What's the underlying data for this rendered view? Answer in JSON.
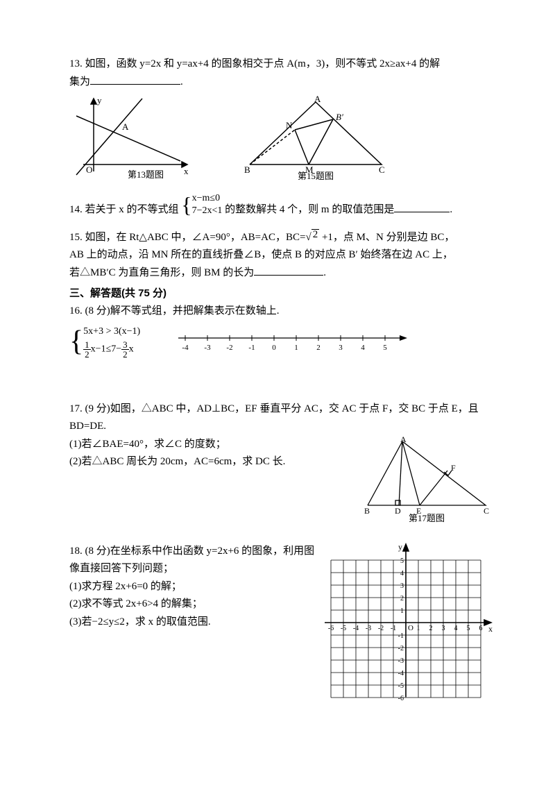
{
  "q13": {
    "text_a": "13. 如图，函数 y=2x 和 y=ax+4 的图象相交于点 A(m，3)，则不等式 2x≥ax+4 的解",
    "text_b": "集为",
    "blank_w": 130,
    "fig_caption": "第13题图",
    "fig": {
      "y_label": "y",
      "x_label": "x",
      "O_label": "O",
      "A_label": "A",
      "axis_color": "#000000",
      "line_color": "#000000"
    }
  },
  "q15fig": {
    "A": "A",
    "B": "B",
    "C": "C",
    "M": "M",
    "N": "N",
    "Bp": "B′",
    "caption": "第15题图",
    "color": "#000000"
  },
  "q14": {
    "prefix": "14. 若关于 x 的不等式组",
    "line1": "x−m≤0",
    "line2": "7−2x<1",
    "suffix": " 的整数解共 4 个，则 m 的取值范围是",
    "blank_w": 80
  },
  "q15": {
    "l1a": "15. 如图，在 Rt△ABC 中，∠A=90°，AB=AC，BC=",
    "sqrt": "2",
    "l1b": " +1，点 M、N 分别是边 BC，",
    "l2": "AB 上的动点，沿 MN 所在的直线折叠∠B，使点 B 的对应点 B′ 始终落在边 AC 上，",
    "l3": "若△MB′C 为直角三角形，则 BM 的长为",
    "blank_w": 100
  },
  "sec3": "三、解答题(共 75 分)",
  "q16": {
    "head": "16. (8 分)解不等式组，并把解集表示在数轴上.",
    "line1": "5x+3 > 3(x−1)",
    "line2_pre": "",
    "line2_mid": "x−1≤7−",
    "line2_post": "x",
    "numline": {
      "ticks": [
        -4,
        -3,
        -2,
        -1,
        0,
        1,
        2,
        3,
        4,
        5
      ],
      "color": "#000000"
    }
  },
  "q17": {
    "l1": "17. (9 分)如图，△ABC 中，AD⊥BC，EF 垂直平分 AC，交 AC 于点 F，交 BC 于点 E，且 BD=DE.",
    "l2": "(1)若∠BAE=40°，求∠C 的度数；",
    "l3": "(2)若△ABC 周长为 20cm，AC=6cm，求 DC 长.",
    "fig": {
      "A": "A",
      "B": "B",
      "C": "C",
      "D": "D",
      "E": "E",
      "F": "F",
      "caption": "第17题图",
      "color": "#000000"
    }
  },
  "q18": {
    "l1": "18. (8 分)在坐标系中作出函数 y=2x+6 的图象，利用图像直接回答下列问题；",
    "l2": "(1)求方程 2x+6=0 的解；",
    "l3": "(2)求不等式 2x+6>4 的解集；",
    "l4": "(3)若−2≤y≤2，求 x 的取值范围.",
    "grid": {
      "xlabels": [
        "-6",
        "-5",
        "-4",
        "-3",
        "-2",
        "-1",
        "1",
        "2",
        "3",
        "4",
        "5",
        "6"
      ],
      "ylabels_pos": [
        "1",
        "2",
        "3",
        "4",
        "5"
      ],
      "ylabels_neg": [
        "-1",
        "-2",
        "-3",
        "-4",
        "-5",
        "-6"
      ],
      "O": "O",
      "x": "x",
      "y": "y",
      "color": "#000000"
    }
  }
}
